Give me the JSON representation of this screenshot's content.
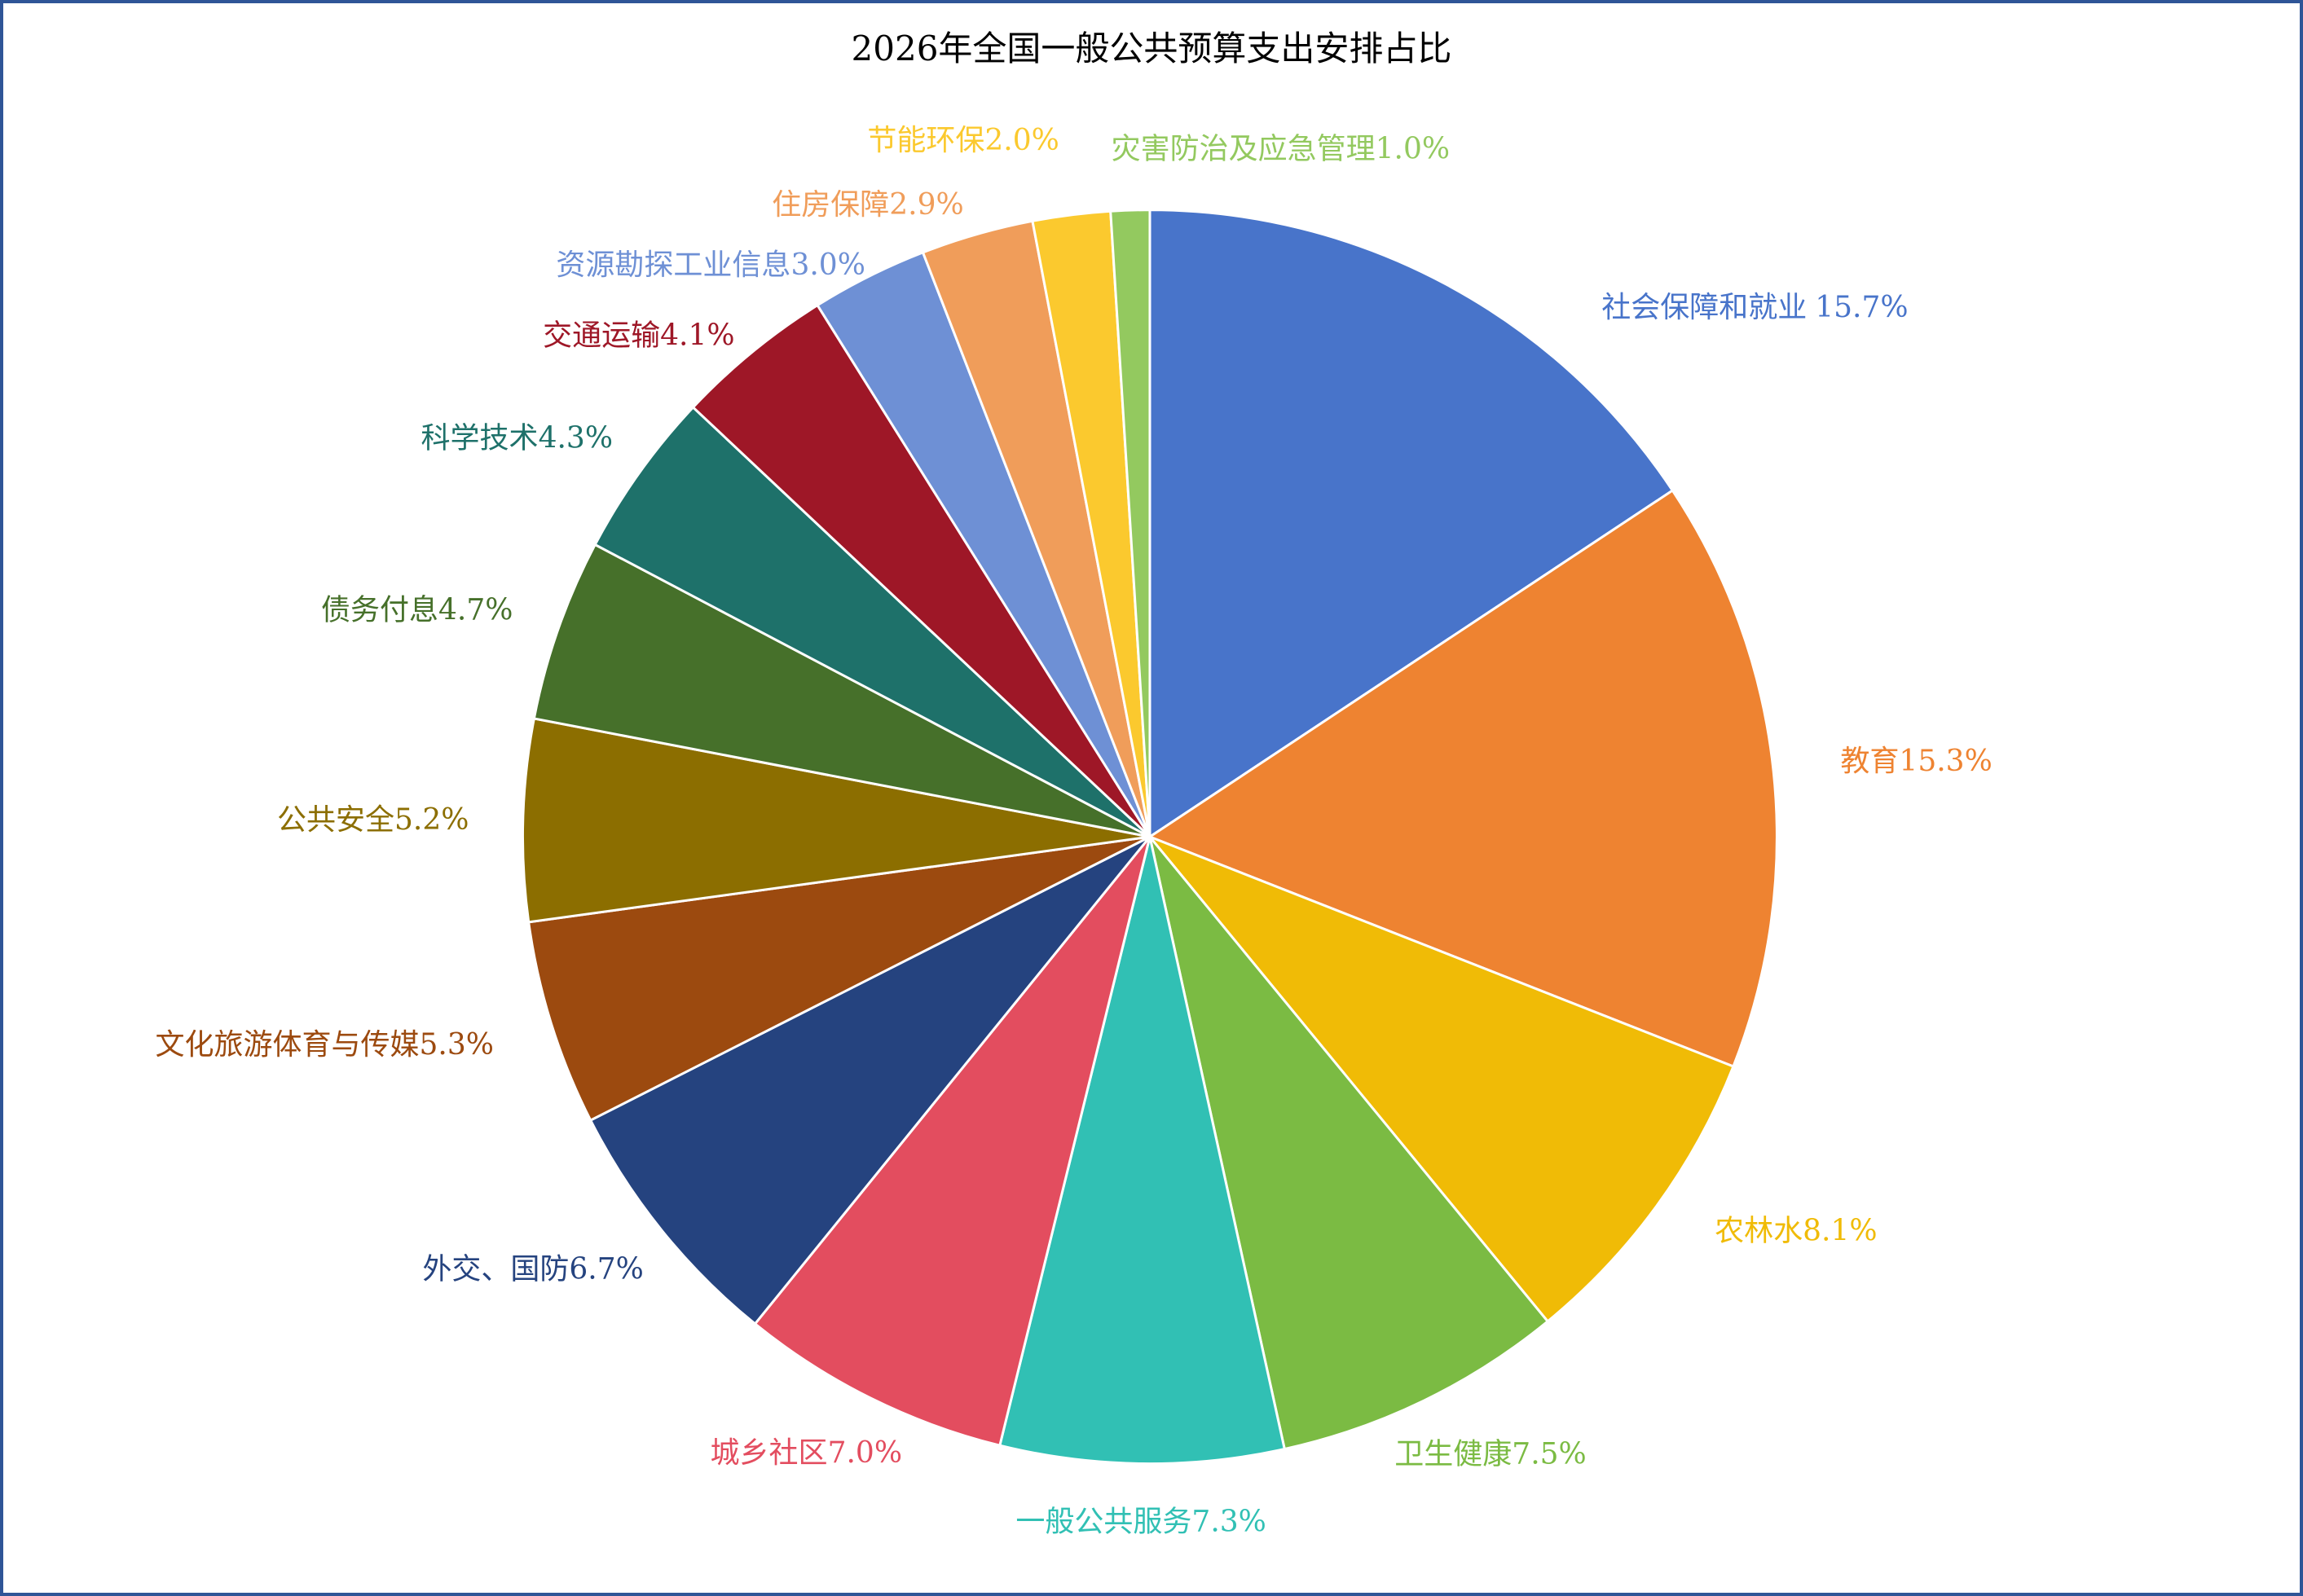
{
  "chart_data": {
    "type": "pie",
    "title": "2026年全国一般公共预算支出安排占比",
    "categories": [
      "社会保障和就业",
      "教育",
      "农林水",
      "卫生健康",
      "一般公共服务",
      "城乡社区",
      "外交、国防",
      "文化旅游体育与传媒",
      "公共安全",
      "债务付息",
      "科学技术",
      "交通运输",
      "资源勘探工业信息",
      "住房保障",
      "节能环保",
      "灾害防治及应急管理"
    ],
    "values": [
      15.7,
      15.3,
      8.1,
      7.5,
      7.3,
      7.0,
      6.7,
      5.3,
      5.2,
      4.7,
      4.3,
      4.1,
      3.0,
      2.9,
      2.0,
      1.0
    ],
    "value_labels": [
      "15.7%",
      "15.3%",
      "8.1%",
      "7.5%",
      "7.3%",
      "7.0%",
      "6.7%",
      "5.3%",
      "5.2%",
      "4.7%",
      "4.3%",
      "4.1%",
      "3.0%",
      "2.9%",
      "2.0%",
      "1.0%"
    ],
    "colors": [
      "#4874ca",
      "#ee8331",
      "#f0bb06",
      "#7bbb43",
      "#31c0b4",
      "#e34d5f",
      "#25437f",
      "#9c4a0f",
      "#8c6e00",
      "#46702a",
      "#1e716a",
      "#9e1727",
      "#6e90d5",
      "#f09d5a",
      "#fbc92e",
      "#93c95f"
    ]
  }
}
